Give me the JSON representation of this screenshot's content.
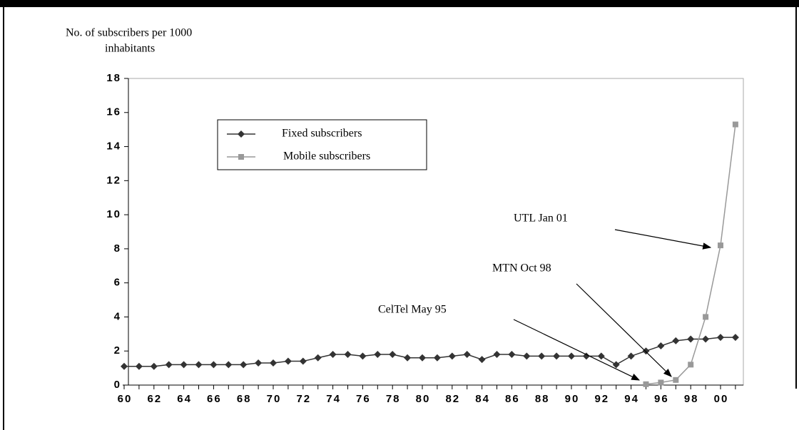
{
  "chart_data": {
    "type": "line",
    "y_label": [
      "No. of subscribers per 1000",
      "inhabitants"
    ],
    "categories": [
      "60",
      null,
      "62",
      null,
      "64",
      null,
      "66",
      null,
      "68",
      null,
      "70",
      null,
      "72",
      null,
      "74",
      null,
      "76",
      null,
      "78",
      null,
      "80",
      null,
      "82",
      null,
      "84",
      null,
      "86",
      null,
      "88",
      null,
      "90",
      null,
      "92",
      null,
      "94",
      null,
      "96",
      null,
      "98",
      null,
      "00",
      null
    ],
    "series": [
      {
        "name": "Fixed subscribers",
        "color": "#333333",
        "marker": "diamond",
        "values": [
          1.1,
          1.1,
          1.1,
          1.2,
          1.2,
          1.2,
          1.2,
          1.2,
          1.2,
          1.3,
          1.3,
          1.4,
          1.4,
          1.6,
          1.8,
          1.8,
          1.7,
          1.8,
          1.8,
          1.6,
          1.6,
          1.6,
          1.7,
          1.8,
          1.5,
          1.8,
          1.8,
          1.7,
          1.7,
          1.7,
          1.7,
          1.7,
          1.7,
          1.2,
          1.7,
          2.0,
          2.3,
          2.6,
          2.7,
          2.7,
          2.8,
          2.8
        ]
      },
      {
        "name": "Mobile subscribers",
        "color": "#999999",
        "marker": "square",
        "values": [
          null,
          null,
          null,
          null,
          null,
          null,
          null,
          null,
          null,
          null,
          null,
          null,
          null,
          null,
          null,
          null,
          null,
          null,
          null,
          null,
          null,
          null,
          null,
          null,
          null,
          null,
          null,
          null,
          null,
          null,
          null,
          null,
          null,
          null,
          null,
          0.05,
          0.15,
          0.3,
          1.2,
          4.0,
          8.2,
          15.3
        ]
      }
    ],
    "ylim": [
      0,
      18
    ],
    "yticks": [
      0,
      2,
      4,
      6,
      8,
      10,
      12,
      14,
      16,
      18
    ],
    "annotations": [
      "UTL Jan 01",
      "MTN Oct 98",
      "CelTel May 95"
    ]
  }
}
